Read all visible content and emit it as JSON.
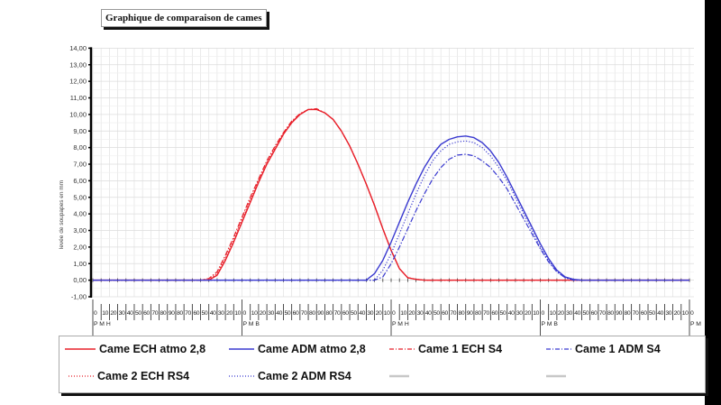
{
  "chart_data": {
    "type": "line",
    "title": "Graphique de comparaison de cames",
    "ylabel": "levée de soupapes en mm",
    "xlabel": "",
    "ylim": [
      -1,
      14
    ],
    "y_ticks": [
      "14,00",
      "13,00",
      "12,00",
      "11,00",
      "10,00",
      "9,00",
      "8,00",
      "7,00",
      "6,00",
      "5,00",
      "4,00",
      "3,00",
      "2,00",
      "1,00",
      "0,00",
      "-1,00"
    ],
    "grid": true,
    "legend_position": "bottom",
    "categories": [
      "0",
      "10",
      "20",
      "30",
      "40",
      "50",
      "60",
      "70",
      "80",
      "90",
      "80",
      "70",
      "60",
      "50",
      "40",
      "30",
      "20",
      "10",
      "0",
      "10",
      "20",
      "30",
      "40",
      "50",
      "60",
      "70",
      "80",
      "90",
      "80",
      "70",
      "60",
      "50",
      "40",
      "30",
      "20",
      "10",
      "0",
      "10",
      "20",
      "30",
      "40",
      "50",
      "60",
      "70",
      "80",
      "90",
      "80",
      "70",
      "60",
      "50",
      "40",
      "30",
      "20",
      "10",
      "0",
      "10",
      "20",
      "30",
      "40",
      "50",
      "60",
      "70",
      "80",
      "90",
      "80",
      "70",
      "60",
      "50",
      "40",
      "30",
      "20",
      "10",
      "0"
    ],
    "phase_labels": [
      "P M H",
      "P M B",
      "P M H",
      "P M B",
      "P M"
    ],
    "series": [
      {
        "name": "Came ECH atmo 2,8",
        "color": "#e8202a",
        "style": "solid",
        "values": [
          0,
          0,
          0,
          0,
          0,
          0,
          0,
          0,
          0,
          0,
          0,
          0,
          0,
          0,
          0,
          0.3,
          1.2,
          2.3,
          3.5,
          4.7,
          5.9,
          7.0,
          7.9,
          8.8,
          9.5,
          10.0,
          10.3,
          10.3,
          10.1,
          9.7,
          9.0,
          8.1,
          7.0,
          5.8,
          4.5,
          3.1,
          1.8,
          0.7,
          0.15,
          0.05,
          0,
          0,
          0,
          0,
          0,
          0,
          0,
          0,
          0,
          0,
          0,
          0,
          0,
          0,
          0,
          0,
          0,
          0,
          0,
          0,
          0,
          0,
          0,
          0,
          0,
          0,
          0,
          0,
          0,
          0,
          0,
          0,
          0
        ]
      },
      {
        "name": "Came ADM atmo 2,8",
        "color": "#3a3ad0",
        "style": "solid",
        "values": [
          0,
          0,
          0,
          0,
          0,
          0,
          0,
          0,
          0,
          0,
          0,
          0,
          0,
          0,
          0,
          0,
          0,
          0,
          0,
          0,
          0,
          0,
          0,
          0,
          0,
          0,
          0,
          0,
          0,
          0,
          0,
          0,
          0,
          0,
          0.4,
          1.2,
          2.3,
          3.5,
          4.7,
          5.8,
          6.8,
          7.6,
          8.2,
          8.5,
          8.65,
          8.7,
          8.6,
          8.3,
          7.8,
          7.1,
          6.2,
          5.2,
          4.2,
          3.2,
          2.2,
          1.3,
          0.6,
          0.2,
          0.05,
          0,
          0,
          0,
          0,
          0,
          0,
          0,
          0,
          0,
          0,
          0,
          0,
          0,
          0
        ]
      },
      {
        "name": "Came 1 ECH S4",
        "color": "#e8202a",
        "style": "dashdot",
        "values": [
          0,
          0,
          0,
          0,
          0,
          0,
          0,
          0,
          0,
          0,
          0,
          0,
          0,
          0,
          0.1,
          0.5,
          1.5,
          2.6,
          3.8,
          5.0,
          6.1,
          7.2,
          8.1,
          8.9,
          9.6,
          10.05,
          10.3,
          10.35,
          10.1,
          9.7,
          9.0,
          8.1,
          7.0,
          5.8,
          4.5,
          3.1,
          1.8,
          0.7,
          0.15,
          0.05,
          0,
          0,
          0,
          0,
          0,
          0,
          0,
          0,
          0,
          0,
          0,
          0,
          0,
          0,
          0,
          0,
          0,
          0,
          0,
          0,
          0,
          0,
          0,
          0,
          0,
          0,
          0,
          0,
          0,
          0,
          0,
          0,
          0
        ]
      },
      {
        "name": "Came 1 ADM S4",
        "color": "#3a3ad0",
        "style": "dashdot",
        "values": [
          0,
          0,
          0,
          0,
          0,
          0,
          0,
          0,
          0,
          0,
          0,
          0,
          0,
          0,
          0,
          0,
          0,
          0,
          0,
          0,
          0,
          0,
          0,
          0,
          0,
          0,
          0,
          0,
          0,
          0,
          0,
          0,
          0,
          0,
          0,
          0.2,
          1.0,
          2.0,
          3.1,
          4.2,
          5.2,
          6.1,
          6.8,
          7.3,
          7.55,
          7.6,
          7.5,
          7.2,
          6.8,
          6.2,
          5.5,
          4.6,
          3.7,
          2.8,
          1.9,
          1.1,
          0.5,
          0.15,
          0,
          0,
          0,
          0,
          0,
          0,
          0,
          0,
          0,
          0,
          0,
          0,
          0,
          0,
          0
        ]
      },
      {
        "name": "Came 2 ECH RS4",
        "color": "#e8202a",
        "style": "dotted",
        "values": [
          0,
          0,
          0,
          0,
          0,
          0,
          0,
          0,
          0,
          0,
          0,
          0,
          0,
          0,
          0.05,
          0.4,
          1.35,
          2.45,
          3.65,
          4.85,
          6.0,
          7.1,
          8.0,
          8.85,
          9.55,
          10.0,
          10.3,
          10.3,
          10.1,
          9.7,
          9.0,
          8.1,
          7.0,
          5.8,
          4.5,
          3.1,
          1.8,
          0.7,
          0.15,
          0.05,
          0,
          0,
          0,
          0,
          0,
          0,
          0,
          0,
          0,
          0,
          0,
          0,
          0,
          0,
          0,
          0,
          0,
          0,
          0,
          0,
          0,
          0,
          0,
          0,
          0,
          0,
          0,
          0,
          0,
          0,
          0,
          0,
          0
        ]
      },
      {
        "name": "Came 2 ADM RS4",
        "color": "#3a3ad0",
        "style": "dotted",
        "values": [
          0,
          0,
          0,
          0,
          0,
          0,
          0,
          0,
          0,
          0,
          0,
          0,
          0,
          0,
          0,
          0,
          0,
          0,
          0,
          0,
          0,
          0,
          0,
          0,
          0,
          0,
          0,
          0,
          0,
          0,
          0,
          0,
          0,
          0,
          0,
          0.6,
          1.6,
          2.8,
          4.0,
          5.2,
          6.3,
          7.2,
          7.8,
          8.2,
          8.35,
          8.4,
          8.3,
          8.0,
          7.5,
          6.8,
          6.0,
          5.0,
          4.0,
          3.0,
          2.0,
          1.2,
          0.5,
          0.15,
          0,
          0,
          0,
          0,
          0,
          0,
          0,
          0,
          0,
          0,
          0,
          0,
          0,
          0,
          0
        ]
      }
    ],
    "legend_empty_swatch_color": "#c8c8c8"
  }
}
